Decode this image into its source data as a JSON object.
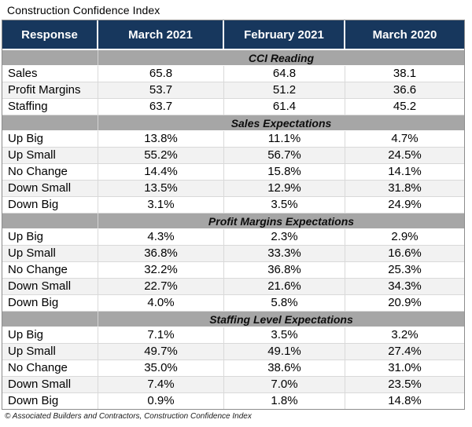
{
  "page_title": "Construction Confidence Index",
  "source_note": "© Associated Builders and Contractors, Construction Confidence Index",
  "colors": {
    "header_navy": "#17375d",
    "section_band_gray": "#a6a6a6",
    "alt_row_gray": "#f2f2f2",
    "gridline": "#d9d9d9",
    "header_text": "#ffffff"
  },
  "chart_data": {
    "type": "table",
    "title": "Construction Confidence Index",
    "columns": [
      "Response",
      "March 2021",
      "February 2021",
      "March 2020"
    ],
    "sections": [
      {
        "header": "CCI Reading",
        "rows": [
          {
            "label": "Sales",
            "values": [
              "65.8",
              "64.8",
              "38.1"
            ]
          },
          {
            "label": "Profit Margins",
            "values": [
              "53.7",
              "51.2",
              "36.6"
            ]
          },
          {
            "label": "Staffing",
            "values": [
              "63.7",
              "61.4",
              "45.2"
            ]
          }
        ]
      },
      {
        "header": "Sales Expectations",
        "rows": [
          {
            "label": "Up Big",
            "values": [
              "13.8%",
              "11.1%",
              "4.7%"
            ]
          },
          {
            "label": "Up Small",
            "values": [
              "55.2%",
              "56.7%",
              "24.5%"
            ]
          },
          {
            "label": "No Change",
            "values": [
              "14.4%",
              "15.8%",
              "14.1%"
            ]
          },
          {
            "label": "Down Small",
            "values": [
              "13.5%",
              "12.9%",
              "31.8%"
            ]
          },
          {
            "label": "Down Big",
            "values": [
              "3.1%",
              "3.5%",
              "24.9%"
            ]
          }
        ]
      },
      {
        "header": "Profit Margins Expectations",
        "rows": [
          {
            "label": "Up Big",
            "values": [
              "4.3%",
              "2.3%",
              "2.9%"
            ]
          },
          {
            "label": "Up Small",
            "values": [
              "36.8%",
              "33.3%",
              "16.6%"
            ]
          },
          {
            "label": "No Change",
            "values": [
              "32.2%",
              "36.8%",
              "25.3%"
            ]
          },
          {
            "label": "Down Small",
            "values": [
              "22.7%",
              "21.6%",
              "34.3%"
            ]
          },
          {
            "label": "Down Big",
            "values": [
              "4.0%",
              "5.8%",
              "20.9%"
            ]
          }
        ]
      },
      {
        "header": "Staffing Level Expectations",
        "rows": [
          {
            "label": "Up Big",
            "values": [
              "7.1%",
              "3.5%",
              "3.2%"
            ]
          },
          {
            "label": "Up Small",
            "values": [
              "49.7%",
              "49.1%",
              "27.4%"
            ]
          },
          {
            "label": "No Change",
            "values": [
              "35.0%",
              "38.6%",
              "31.0%"
            ]
          },
          {
            "label": "Down Small",
            "values": [
              "7.4%",
              "7.0%",
              "23.5%"
            ]
          },
          {
            "label": "Down Big",
            "values": [
              "0.9%",
              "1.8%",
              "14.8%"
            ]
          }
        ]
      }
    ],
    "source": "© Associated Builders and Contractors, Construction Confidence Index",
    "layout": {
      "grid": true,
      "section_titles_span_value_columns": true,
      "alternating_rows": true
    }
  }
}
